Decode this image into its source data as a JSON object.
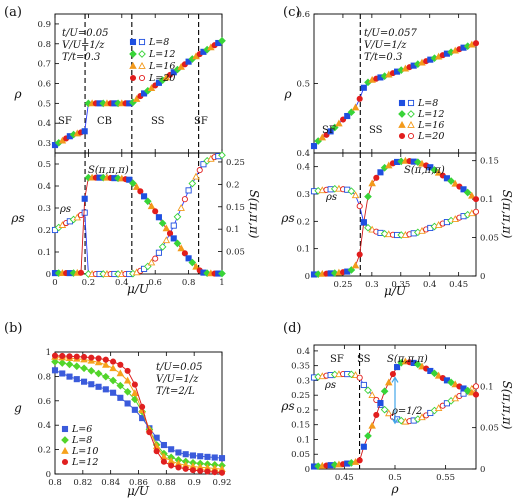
{
  "figure": {
    "panel_labels": [
      "(a)",
      "(b)",
      "(c)",
      "(d)"
    ]
  },
  "colors": {
    "L8": "#1f4fe0",
    "L12": "#38d438",
    "L16": "#f39a1c",
    "L20": "#e21d1d",
    "rho_line": "#2b3cff",
    "s_line": "#d01818",
    "g_L6": "#3b5bdb",
    "g_L8": "#52d52a",
    "g_L10": "#f6a21c",
    "g_L12": "#e02020",
    "arrow": "#44a7e8"
  },
  "chart_data": [
    {
      "id": "a-top",
      "type": "line",
      "xlim": [
        0,
        1
      ],
      "ylim": [
        0.25,
        0.95
      ],
      "yticks": [
        "0.3",
        "0.4",
        "0.5",
        "0.6",
        "0.7",
        "0.8",
        "0.9"
      ],
      "ylabel": "ρ",
      "params": [
        "t/U=0.05",
        "V/U=1/z",
        "T/t=0.3"
      ],
      "legend": [
        "L=8",
        "L=12",
        "L=16",
        "L=20"
      ],
      "regions": [
        "SF",
        "CB",
        "SS",
        "SF"
      ],
      "dashed_x": [
        0.18,
        0.46,
        0.86
      ],
      "series": [
        {
          "name": "ρ",
          "x": [
            0,
            0.02,
            0.04,
            0.06,
            0.08,
            0.1,
            0.12,
            0.14,
            0.16,
            0.18,
            0.2,
            0.25,
            0.3,
            0.35,
            0.4,
            0.45,
            0.46,
            0.5,
            0.55,
            0.6,
            0.65,
            0.7,
            0.75,
            0.8,
            0.85,
            0.86,
            0.9,
            0.95,
            1.0
          ],
          "y": [
            0.29,
            0.3,
            0.31,
            0.32,
            0.33,
            0.34,
            0.345,
            0.35,
            0.355,
            0.36,
            0.5,
            0.5,
            0.5,
            0.5,
            0.5,
            0.5,
            0.5,
            0.53,
            0.56,
            0.59,
            0.62,
            0.65,
            0.68,
            0.71,
            0.74,
            0.745,
            0.765,
            0.79,
            0.815
          ]
        }
      ]
    },
    {
      "id": "a-bottom",
      "type": "line",
      "xlim": [
        0,
        1
      ],
      "ylim": [
        0,
        0.55
      ],
      "y2lim": [
        0,
        0.27
      ],
      "xticks": [
        "0",
        "0.2",
        "0.4",
        "0.6",
        "0.8",
        "1"
      ],
      "yticks": [
        "0",
        "0.1",
        "0.2",
        "0.3",
        "0.4",
        "0.5"
      ],
      "y2ticks": [
        "0.05",
        "0.1",
        "0.15",
        "0.2",
        "0.25"
      ],
      "xlabel": "μ/U",
      "ylabel": "ρs",
      "y2label": "S(π,π,π)",
      "annotations": [
        "ρs",
        "S(π,π,π)"
      ],
      "dashed_x": [
        0.18,
        0.46,
        0.86
      ],
      "series": [
        {
          "name": "ρs",
          "x": [
            0,
            0.02,
            0.04,
            0.06,
            0.08,
            0.1,
            0.12,
            0.14,
            0.16,
            0.18,
            0.2,
            0.3,
            0.4,
            0.46,
            0.5,
            0.55,
            0.6,
            0.65,
            0.7,
            0.75,
            0.8,
            0.85,
            0.88,
            0.9,
            0.95,
            1.0
          ],
          "y": [
            0.2,
            0.21,
            0.22,
            0.23,
            0.235,
            0.245,
            0.25,
            0.26,
            0.27,
            0.28,
            0.0,
            0.0,
            0.0,
            0.0,
            0.01,
            0.03,
            0.07,
            0.13,
            0.2,
            0.29,
            0.38,
            0.45,
            0.49,
            0.51,
            0.53,
            0.54
          ]
        },
        {
          "name": "S(π,π,π)",
          "x": [
            0,
            0.1,
            0.17,
            0.18,
            0.2,
            0.3,
            0.4,
            0.45,
            0.46,
            0.5,
            0.55,
            0.6,
            0.65,
            0.7,
            0.75,
            0.8,
            0.84,
            0.86,
            0.88,
            0.9,
            0.95,
            1.0
          ],
          "y": [
            0.002,
            0.002,
            0.003,
            0.215,
            0.215,
            0.215,
            0.213,
            0.21,
            0.205,
            0.19,
            0.165,
            0.14,
            0.11,
            0.085,
            0.06,
            0.035,
            0.018,
            0.01,
            0.004,
            0.002,
            0.001,
            0.001
          ]
        }
      ]
    },
    {
      "id": "b",
      "type": "line",
      "xlim": [
        0.8,
        0.92
      ],
      "ylim": [
        0,
        1.0
      ],
      "xticks": [
        "0.8",
        "0.82",
        "0.84",
        "0.86",
        "0.88",
        "0.9",
        "0.92"
      ],
      "yticks": [
        "0",
        "0.2",
        "0.4",
        "0.6",
        "0.8",
        "1"
      ],
      "xlabel": "μ/U",
      "ylabel": "g",
      "params": [
        "t/U=0.05",
        "V/U=1/z",
        "T/t=2/L"
      ],
      "legend": [
        "L=6",
        "L=8",
        "L=10",
        "L=12"
      ],
      "series": [
        {
          "name": "L=6",
          "x": [
            0.8,
            0.81,
            0.82,
            0.83,
            0.84,
            0.85,
            0.86,
            0.865,
            0.87,
            0.875,
            0.88,
            0.89,
            0.9,
            0.91,
            0.92
          ],
          "y": [
            0.85,
            0.8,
            0.76,
            0.72,
            0.68,
            0.6,
            0.5,
            0.42,
            0.34,
            0.27,
            0.22,
            0.17,
            0.15,
            0.14,
            0.13
          ]
        },
        {
          "name": "L=8",
          "x": [
            0.8,
            0.81,
            0.82,
            0.83,
            0.84,
            0.85,
            0.86,
            0.865,
            0.87,
            0.875,
            0.88,
            0.89,
            0.9,
            0.91,
            0.92
          ],
          "y": [
            0.92,
            0.9,
            0.87,
            0.83,
            0.78,
            0.7,
            0.58,
            0.45,
            0.3,
            0.2,
            0.15,
            0.11,
            0.09,
            0.08,
            0.07
          ]
        },
        {
          "name": "L=10",
          "x": [
            0.8,
            0.81,
            0.82,
            0.83,
            0.84,
            0.85,
            0.855,
            0.86,
            0.865,
            0.87,
            0.875,
            0.88,
            0.89,
            0.9,
            0.91,
            0.92
          ],
          "y": [
            0.96,
            0.95,
            0.94,
            0.92,
            0.88,
            0.8,
            0.72,
            0.6,
            0.45,
            0.3,
            0.18,
            0.12,
            0.08,
            0.06,
            0.05,
            0.04
          ]
        },
        {
          "name": "L=12",
          "x": [
            0.8,
            0.81,
            0.82,
            0.83,
            0.84,
            0.85,
            0.855,
            0.86,
            0.865,
            0.87,
            0.875,
            0.88,
            0.89,
            0.9,
            0.91,
            0.92
          ],
          "y": [
            0.97,
            0.965,
            0.96,
            0.95,
            0.93,
            0.88,
            0.8,
            0.66,
            0.45,
            0.26,
            0.14,
            0.08,
            0.05,
            0.03,
            0.02,
            0.01
          ]
        }
      ]
    },
    {
      "id": "c-top",
      "type": "line",
      "xlim": [
        0.2,
        0.48
      ],
      "ylim": [
        0.4,
        0.6
      ],
      "yticks": [
        "0.4",
        "0.5",
        "0.6"
      ],
      "ylabel": "ρ",
      "params": [
        "t/U=0.057",
        "V/U=1/z",
        "T/t=0.3"
      ],
      "legend": [
        "L=8",
        "L=12",
        "L=16",
        "L=20"
      ],
      "regions": [
        "SF",
        "SS"
      ],
      "dashed_x": [
        0.28
      ],
      "series": [
        {
          "name": "ρ",
          "x": [
            0.2,
            0.21,
            0.22,
            0.23,
            0.24,
            0.25,
            0.26,
            0.27,
            0.275,
            0.28,
            0.285,
            0.29,
            0.3,
            0.32,
            0.34,
            0.36,
            0.38,
            0.4,
            0.42,
            0.44,
            0.46,
            0.48
          ],
          "y": [
            0.41,
            0.42,
            0.425,
            0.432,
            0.44,
            0.448,
            0.455,
            0.463,
            0.47,
            0.48,
            0.492,
            0.5,
            0.505,
            0.51,
            0.516,
            0.522,
            0.528,
            0.534,
            0.54,
            0.546,
            0.552,
            0.558
          ]
        }
      ]
    },
    {
      "id": "c-bottom",
      "type": "line",
      "xlim": [
        0.2,
        0.48
      ],
      "ylim": [
        0,
        0.45
      ],
      "y2lim": [
        0,
        0.16
      ],
      "xticks": [
        "0.25",
        "0.3",
        "0.35",
        "0.4",
        "0.45"
      ],
      "yticks": [
        "0",
        "0.1",
        "0.2",
        "0.3",
        "0.4"
      ],
      "y2ticks": [
        "0",
        "0.05",
        "0.1",
        "0.15"
      ],
      "xlabel": "μ/U",
      "ylabel": "ρs",
      "y2label": "S(π,π,π)",
      "annotations": [
        "ρs",
        "S(π,π,π)"
      ],
      "dashed_x": [
        0.28
      ],
      "series": [
        {
          "name": "ρs",
          "x": [
            0.2,
            0.22,
            0.24,
            0.26,
            0.27,
            0.28,
            0.285,
            0.29,
            0.3,
            0.31,
            0.32,
            0.34,
            0.36,
            0.38,
            0.4,
            0.42,
            0.44,
            0.46,
            0.48
          ],
          "y": [
            0.31,
            0.315,
            0.32,
            0.315,
            0.305,
            0.25,
            0.2,
            0.18,
            0.17,
            0.16,
            0.155,
            0.15,
            0.15,
            0.16,
            0.175,
            0.19,
            0.205,
            0.22,
            0.235
          ]
        },
        {
          "name": "S(π,π,π)",
          "x": [
            0.2,
            0.22,
            0.24,
            0.26,
            0.27,
            0.28,
            0.29,
            0.3,
            0.32,
            0.34,
            0.36,
            0.38,
            0.4,
            0.42,
            0.44,
            0.46,
            0.48
          ],
          "y": [
            0.002,
            0.003,
            0.004,
            0.006,
            0.01,
            0.03,
            0.095,
            0.12,
            0.14,
            0.148,
            0.15,
            0.148,
            0.142,
            0.132,
            0.122,
            0.112,
            0.1
          ]
        }
      ]
    },
    {
      "id": "d",
      "type": "line",
      "xlim": [
        0.42,
        0.58
      ],
      "ylim": [
        0,
        0.42
      ],
      "y2lim": [
        0,
        0.15
      ],
      "xticks": [
        "0.45",
        "0.5",
        "0.55"
      ],
      "yticks": [
        "0",
        "0.05",
        "0.1",
        "0.15",
        "0.2",
        "0.25",
        "0.3",
        "0.35",
        "0.4"
      ],
      "y2ticks": [
        "0",
        "0.05",
        "0.1"
      ],
      "xlabel": "ρ",
      "ylabel": "ρs",
      "y2label": "S(π,π,π)",
      "regions": [
        "SF",
        "SS"
      ],
      "annotations": [
        "ρs",
        "S(π,π,π)",
        "ρ=1/2"
      ],
      "dashed_x": [
        0.465
      ],
      "series": [
        {
          "name": "ρs",
          "x": [
            0.42,
            0.43,
            0.44,
            0.45,
            0.46,
            0.465,
            0.47,
            0.48,
            0.49,
            0.5,
            0.51,
            0.52,
            0.53,
            0.54,
            0.55,
            0.56,
            0.57,
            0.58
          ],
          "y": [
            0.31,
            0.315,
            0.32,
            0.322,
            0.32,
            0.31,
            0.28,
            0.24,
            0.2,
            0.17,
            0.16,
            0.165,
            0.18,
            0.2,
            0.22,
            0.24,
            0.26,
            0.28
          ]
        },
        {
          "name": "S(π,π,π)",
          "x": [
            0.42,
            0.43,
            0.44,
            0.45,
            0.46,
            0.465,
            0.47,
            0.48,
            0.49,
            0.5,
            0.505,
            0.51,
            0.52,
            0.53,
            0.54,
            0.55,
            0.56,
            0.57,
            0.58
          ],
          "y": [
            0.003,
            0.004,
            0.005,
            0.006,
            0.008,
            0.01,
            0.03,
            0.06,
            0.095,
            0.12,
            0.128,
            0.13,
            0.128,
            0.122,
            0.115,
            0.108,
            0.102,
            0.096,
            0.09
          ]
        }
      ]
    }
  ]
}
